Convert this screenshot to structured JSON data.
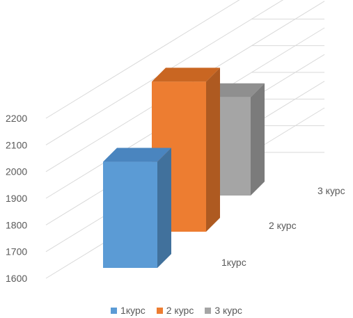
{
  "chart_data": {
    "type": "bar",
    "categories": [
      "1курс",
      "2 курс",
      "3 курс"
    ],
    "values": [
      2010,
      2180,
      1980
    ],
    "title": "",
    "xlabel": "",
    "ylabel": "",
    "ylim": [
      1600,
      2200
    ],
    "ticks": [
      "1600",
      "1700",
      "1800",
      "1900",
      "2000",
      "2100",
      "2200"
    ],
    "grid": true,
    "three_d": true,
    "legend_position": "bottom",
    "colors": [
      "#5b9bd5",
      "#ed7d31",
      "#a5a5a5"
    ],
    "side_colors": [
      "#41719c",
      "#ae5a21",
      "#7b7b7b"
    ],
    "top_colors": [
      "#4a85bf",
      "#c96622",
      "#8f8f8f"
    ]
  }
}
